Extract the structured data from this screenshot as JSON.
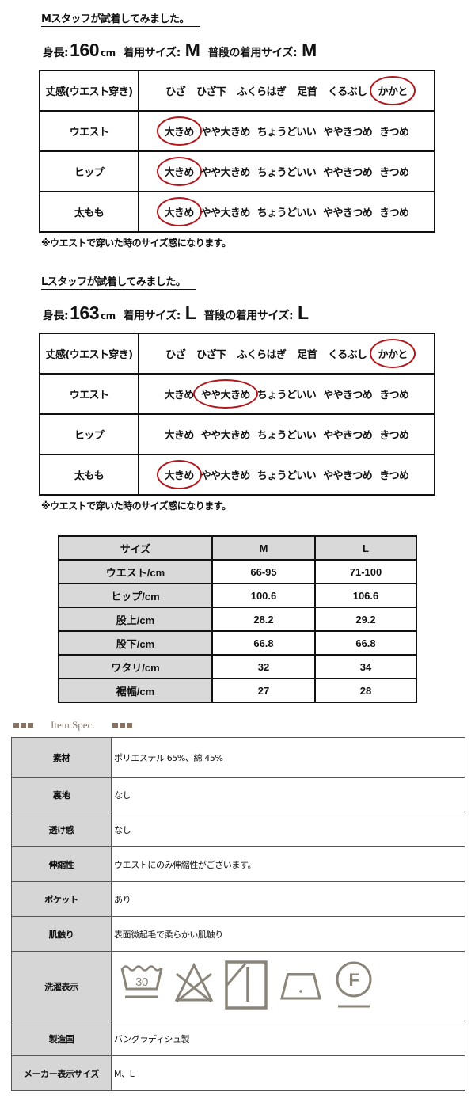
{
  "staff": [
    {
      "title": "Mスタッフが試着してみました。",
      "height_label": "身長:",
      "height": "160",
      "height_unit": "cm",
      "worn_label": "着用サイズ:",
      "worn": "M",
      "usual_label": "普段の着用サイズ:",
      "usual": "M",
      "rows": [
        {
          "label": "丈感(ウエスト穿き)",
          "options": [
            "ひざ",
            "ひざ下",
            "ふくらはぎ",
            "足首",
            "くるぶし",
            "かかと"
          ],
          "selected": 5
        },
        {
          "label": "ウエスト",
          "options": [
            "大きめ",
            "やや大きめ",
            "ちょうどいい",
            "ややきつめ",
            "きつめ"
          ],
          "selected": 0
        },
        {
          "label": "ヒップ",
          "options": [
            "大きめ",
            "やや大きめ",
            "ちょうどいい",
            "ややきつめ",
            "きつめ"
          ],
          "selected": 0
        },
        {
          "label": "太もも",
          "options": [
            "大きめ",
            "やや大きめ",
            "ちょうどいい",
            "ややきつめ",
            "きつめ"
          ],
          "selected": 0
        }
      ],
      "note": "※ウエストで穿いた時のサイズ感になります。"
    },
    {
      "title": "Lスタッフが試着してみました。",
      "height_label": "身長:",
      "height": "163",
      "height_unit": "cm",
      "worn_label": "着用サイズ:",
      "worn": "L",
      "usual_label": "普段の着用サイズ:",
      "usual": "L",
      "rows": [
        {
          "label": "丈感(ウエスト穿き)",
          "options": [
            "ひざ",
            "ひざ下",
            "ふくらはぎ",
            "足首",
            "くるぶし",
            "かかと"
          ],
          "selected": 5
        },
        {
          "label": "ウエスト",
          "options": [
            "大きめ",
            "やや大きめ",
            "ちょうどいい",
            "ややきつめ",
            "きつめ"
          ],
          "selected": 1
        },
        {
          "label": "ヒップ",
          "options": [
            "大きめ",
            "やや大きめ",
            "ちょうどいい",
            "ややきつめ",
            "きつめ"
          ],
          "selected": null
        },
        {
          "label": "太もも",
          "options": [
            "大きめ",
            "やや大きめ",
            "ちょうどいい",
            "ややきつめ",
            "きつめ"
          ],
          "selected": 0
        }
      ],
      "note": "※ウエストで穿いた時のサイズ感になります。"
    }
  ],
  "size_table": {
    "header": [
      "サイズ",
      "M",
      "L"
    ],
    "rows": [
      [
        "ウエスト/cm",
        "66-95",
        "71-100"
      ],
      [
        "ヒップ/cm",
        "100.6",
        "106.6"
      ],
      [
        "股上/cm",
        "28.2",
        "29.2"
      ],
      [
        "股下/cm",
        "66.8",
        "66.8"
      ],
      [
        "ワタリ/cm",
        "32",
        "34"
      ],
      [
        "裾幅/cm",
        "27",
        "28"
      ]
    ]
  },
  "spec": {
    "heading": "Item Spec.",
    "rows": [
      {
        "key": "素材",
        "value": "ポリエステル  65%、綿  45%"
      },
      {
        "key": "裏地",
        "value": "なし"
      },
      {
        "key": "透け感",
        "value": "なし"
      },
      {
        "key": "伸縮性",
        "value": "ウエストにのみ伸縮性がございます。"
      },
      {
        "key": "ポケット",
        "value": "あり"
      },
      {
        "key": "肌触り",
        "value": "表面微起毛で柔らかい肌触り"
      },
      {
        "key": "洗濯表示",
        "icons": [
          "wash-30-gentle-icon",
          "no-bleach-icon",
          "line-dry-shade-icon",
          "iron-low-icon",
          "dry-clean-f-gentle-icon"
        ],
        "wash_temp": "30",
        "dryclean_letter": "F"
      },
      {
        "key": "製造国",
        "value": "バングラディシュ製"
      },
      {
        "key": "メーカー表示サイズ",
        "value": "M、L"
      }
    ]
  },
  "colors": {
    "circle": "#b0181c",
    "accent_brown": "#8b7362",
    "icon_gray": "#8a8479",
    "header_gray": "#d9d9d9"
  }
}
